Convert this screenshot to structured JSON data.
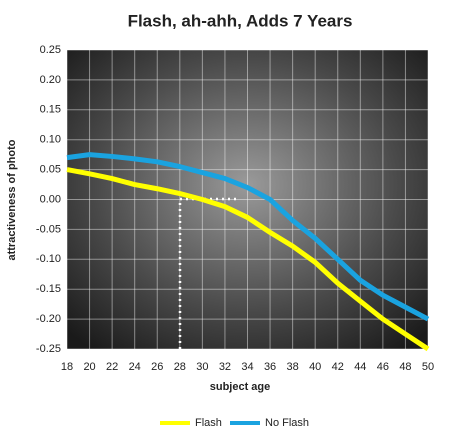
{
  "chart_data": {
    "type": "line",
    "title": "Flash, ah-ahh, Adds 7 Years",
    "x_label": "subject age",
    "y_label": "attractiveness of photo",
    "x": [
      18,
      20,
      22,
      24,
      26,
      28,
      30,
      32,
      34,
      36,
      38,
      40,
      42,
      44,
      46,
      48,
      50
    ],
    "series": [
      {
        "name": "Flash",
        "color": "#ffff00",
        "values": [
          0.05,
          0.043,
          0.035,
          0.025,
          0.018,
          0.01,
          0.0,
          -0.012,
          -0.03,
          -0.055,
          -0.078,
          -0.105,
          -0.14,
          -0.17,
          -0.2,
          -0.225,
          -0.25
        ]
      },
      {
        "name": "No Flash",
        "color": "#1aa3e0",
        "values": [
          0.07,
          0.075,
          0.072,
          0.068,
          0.063,
          0.055,
          0.045,
          0.035,
          0.02,
          0.0,
          -0.035,
          -0.065,
          -0.1,
          -0.135,
          -0.16,
          -0.18,
          -0.2
        ]
      }
    ],
    "xlim": [
      18,
      50
    ],
    "xticks": [
      18,
      20,
      22,
      24,
      26,
      28,
      30,
      32,
      34,
      36,
      38,
      40,
      42,
      44,
      46,
      48,
      50
    ],
    "ylim": [
      -0.25,
      0.25
    ],
    "yticks": [
      0.25,
      {
        "value": 0.2,
        "label": "0.20"
      },
      0.15,
      {
        "value": 0.1,
        "label": "0.10"
      },
      0.05,
      {
        "value": 0,
        "label": "0.00"
      },
      -0.05,
      {
        "value": -0.1,
        "label": "-0.10"
      },
      -0.15,
      {
        "value": -0.2,
        "label": "-0.20"
      },
      -0.25
    ],
    "grid": true,
    "legend": "bottom"
  }
}
